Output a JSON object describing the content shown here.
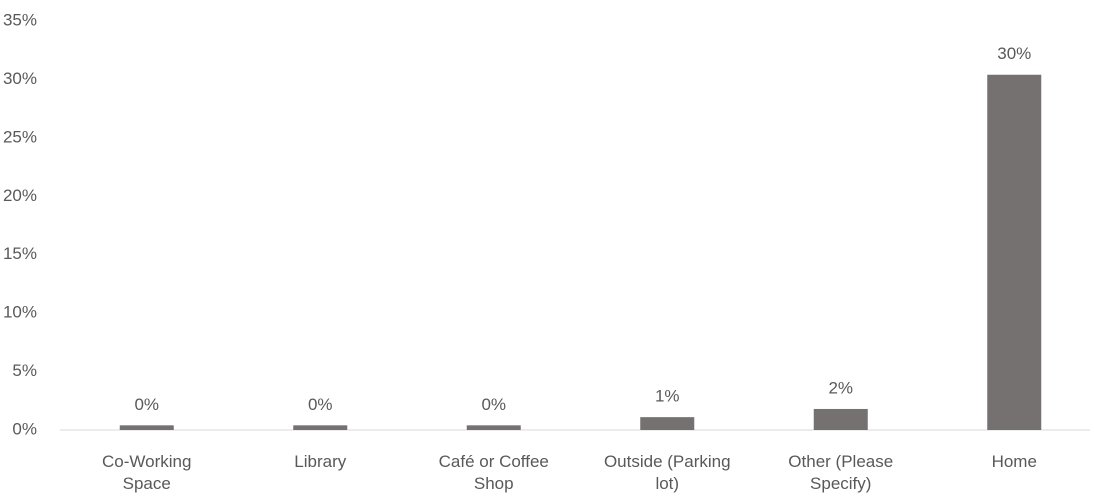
{
  "chart_data": {
    "type": "bar",
    "categories": [
      "Co-Working Space",
      "Library",
      "Café or Coffee Shop",
      "Outside (Parking lot)",
      "Other (Please Specify)",
      "Home"
    ],
    "values": [
      0.4,
      0.4,
      0.4,
      1.1,
      1.8,
      30.4
    ],
    "value_labels": [
      "0%",
      "0%",
      "0%",
      "1%",
      "2%",
      "30%"
    ],
    "color": "#767171",
    "ylim": [
      0,
      35
    ],
    "yticks": [
      {
        "value": 0,
        "label": "0%"
      },
      {
        "value": 5,
        "label": "5%"
      },
      {
        "value": 10,
        "label": "10%"
      },
      {
        "value": 15,
        "label": "15%"
      },
      {
        "value": 20,
        "label": "20%"
      },
      {
        "value": 25,
        "label": "25%"
      },
      {
        "value": 30,
        "label": "30%"
      },
      {
        "value": 35,
        "label": "35%"
      }
    ],
    "grid": false
  }
}
